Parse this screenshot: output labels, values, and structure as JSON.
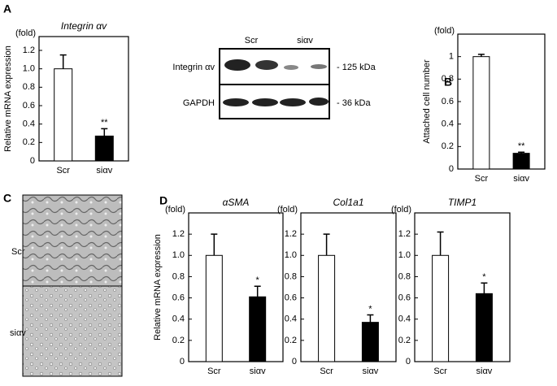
{
  "panel_labels": [
    "A",
    "B",
    "C",
    "D"
  ],
  "chart_data": [
    {
      "type": "bar",
      "title": "Integrin αv",
      "ylabel": "Relative mRNA expression",
      "unit": "(fold)",
      "categories": [
        "Scr",
        "siαv"
      ],
      "values": [
        1.0,
        0.27
      ],
      "errors": [
        0.15,
        0.08
      ],
      "significance": [
        null,
        "**"
      ],
      "colors": [
        "#ffffff",
        "#000000"
      ],
      "ylim": [
        0,
        1.35
      ],
      "yticks": [
        0,
        0.2,
        0.4,
        0.6,
        0.8,
        {
          "value": 1,
          "label": "1.0"
        },
        1.2
      ]
    },
    {
      "type": "bar",
      "ylabel": "Attached cell number",
      "unit": "(fold)",
      "categories": [
        "Scr",
        "siαv"
      ],
      "values": [
        1.0,
        0.14
      ],
      "errors": [
        0.02,
        0.01
      ],
      "significance": [
        null,
        "**"
      ],
      "colors": [
        "#ffffff",
        "#000000"
      ],
      "ylim": [
        0,
        1.2
      ],
      "yticks": [
        0,
        0.2,
        0.4,
        0.6,
        0.8,
        1
      ]
    },
    {
      "type": "bar",
      "title": "αSMA",
      "ylabel": "Relative mRNA expression",
      "unit": "(fold)",
      "categories": [
        "Scr",
        "siαv"
      ],
      "values": [
        1.0,
        0.61
      ],
      "errors": [
        0.2,
        0.1
      ],
      "significance": [
        null,
        "*"
      ],
      "colors": [
        "#ffffff",
        "#000000"
      ],
      "ylim": [
        0,
        1.4
      ],
      "yticks": [
        0,
        0.2,
        0.4,
        0.6,
        0.8,
        {
          "value": 1,
          "label": "1.0"
        },
        1.2
      ]
    },
    {
      "type": "bar",
      "title": "Col1a1",
      "unit": "(fold)",
      "categories": [
        "Scr",
        "siαv"
      ],
      "values": [
        1.0,
        0.37
      ],
      "errors": [
        0.2,
        0.07
      ],
      "significance": [
        null,
        "*"
      ],
      "colors": [
        "#ffffff",
        "#000000"
      ],
      "ylim": [
        0,
        1.4
      ],
      "yticks": [
        0,
        0.2,
        0.4,
        0.6,
        0.8,
        {
          "value": 1,
          "label": "1.0"
        },
        1.2
      ]
    },
    {
      "type": "bar",
      "title": "TIMP1",
      "unit": "(fold)",
      "categories": [
        "Scr",
        "siαv"
      ],
      "values": [
        1.0,
        0.64
      ],
      "errors": [
        0.22,
        0.1
      ],
      "significance": [
        null,
        "*"
      ],
      "colors": [
        "#ffffff",
        "#000000"
      ],
      "ylim": [
        0,
        1.4
      ],
      "yticks": [
        0,
        0.2,
        0.4,
        0.6,
        0.8,
        {
          "value": 1,
          "label": "1.0"
        },
        1.2
      ]
    }
  ],
  "blot": {
    "lanes": [
      "Scr",
      "siαv"
    ],
    "rows": [
      {
        "label": "Integrin αv",
        "size": "- 125 kDa"
      },
      {
        "label": "GAPDH",
        "size": "- 36 kDa"
      }
    ]
  },
  "micrograph": {
    "rows": [
      "Scr",
      "siαv"
    ]
  }
}
